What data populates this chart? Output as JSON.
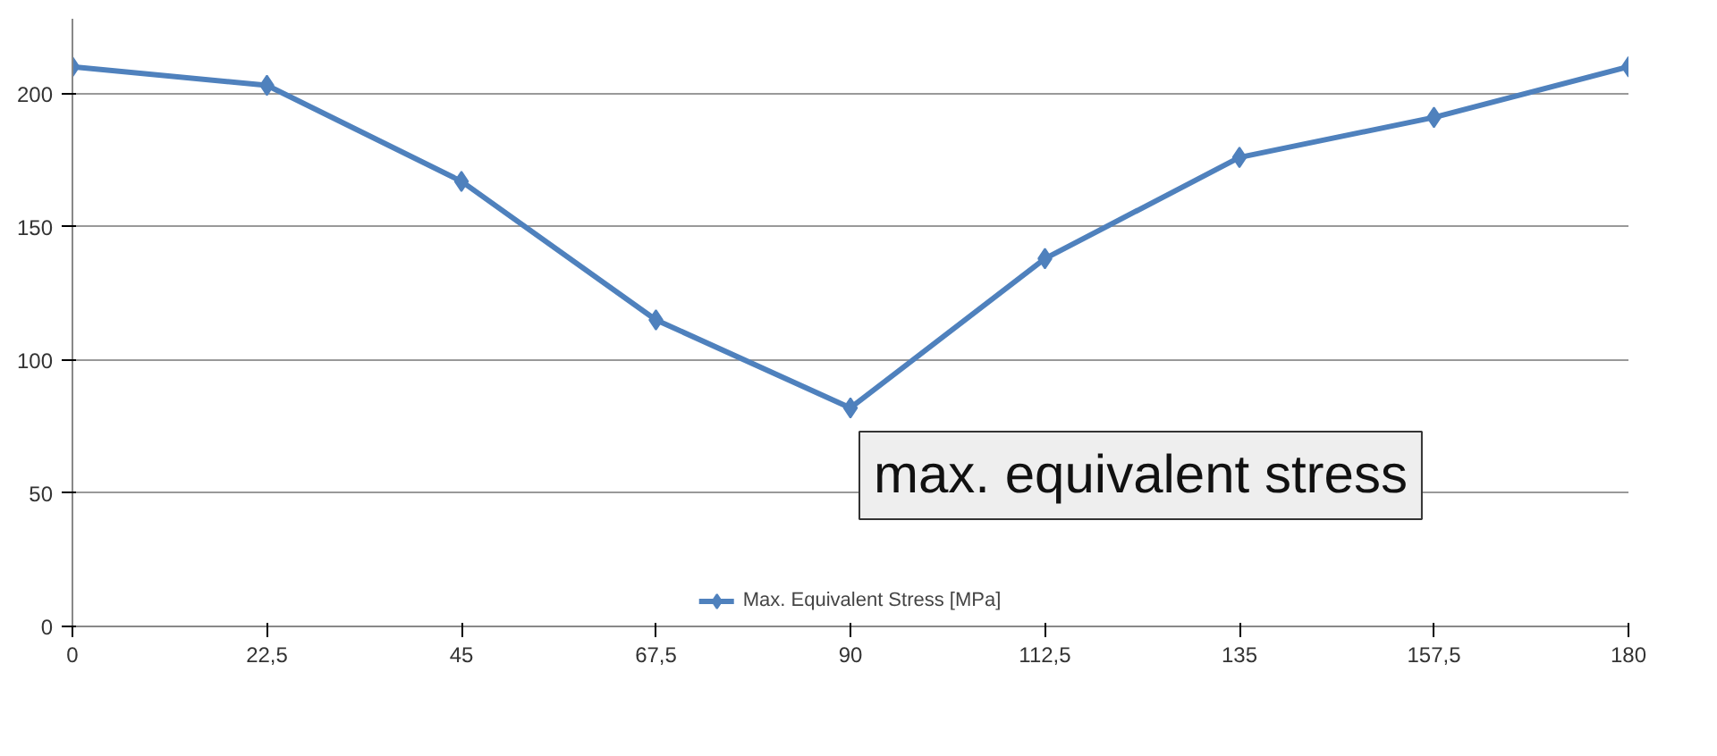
{
  "chart_data": {
    "type": "line",
    "x": [
      0,
      22.5,
      45,
      67.5,
      90,
      112.5,
      135,
      157.5,
      180
    ],
    "series": [
      {
        "name": "Max. Equivalent Stress [MPa]",
        "color": "#4f81bd",
        "values": [
          210,
          203,
          167,
          115,
          82,
          138,
          176,
          191,
          210
        ]
      }
    ],
    "xlim": [
      0,
      180
    ],
    "ylim": [
      0,
      228
    ],
    "xticks": [
      0,
      {
        "value": 22.5,
        "label": "22,5"
      },
      45,
      {
        "value": 67.5,
        "label": "67,5"
      },
      90,
      {
        "value": 112.5,
        "label": "112,5"
      },
      135,
      {
        "value": 157.5,
        "label": "157,5"
      },
      180
    ],
    "yticks": [
      0,
      50,
      100,
      150,
      200
    ],
    "grid": "y",
    "legend": "bottom",
    "marker": "diamond",
    "line_style": "solid",
    "annotations": [
      "max. equivalent stress"
    ]
  }
}
